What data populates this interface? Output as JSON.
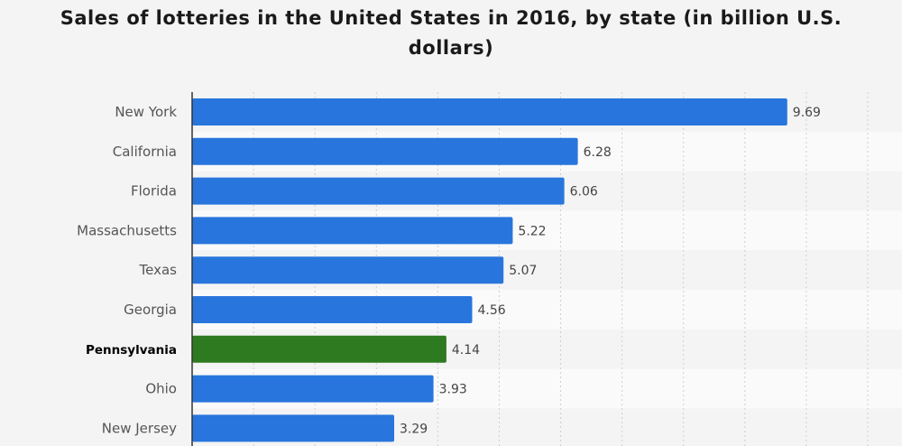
{
  "chart_data": {
    "type": "bar",
    "orientation": "horizontal",
    "title": "Sales of lotteries in the United States in 2016, by state (in billion U.S. dollars)",
    "categories": [
      "New York",
      "California",
      "Florida",
      "Massachusetts",
      "Texas",
      "Georgia",
      "Pennsylvania",
      "Ohio",
      "New Jersey"
    ],
    "values": [
      9.69,
      6.28,
      6.06,
      5.22,
      5.07,
      4.56,
      4.14,
      3.93,
      3.29
    ],
    "value_labels": [
      "9.69",
      "6.28",
      "6.06",
      "5.22",
      "5.07",
      "4.56",
      "4.14",
      "3.93",
      "3.29"
    ],
    "highlight_category": "Pennsylvania",
    "xlim": [
      0,
      11
    ],
    "grid": true,
    "colors": {
      "bar": "#2876dd",
      "highlight_bar": "#2e7a20",
      "background": "#f4f4f4",
      "band": "#fafafa",
      "grid": "#cfcfcf",
      "axis": "#333333"
    }
  }
}
